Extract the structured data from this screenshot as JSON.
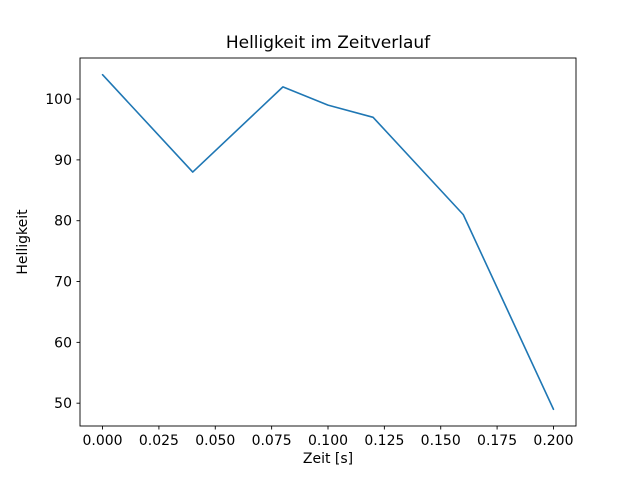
{
  "chart_data": {
    "type": "line",
    "title": "Helligkeit im Zeitverlauf",
    "xlabel": "Zeit [s]",
    "ylabel": "Helligkeit",
    "x": [
      0.0,
      0.04,
      0.08,
      0.1,
      0.12,
      0.16,
      0.2
    ],
    "y": [
      104,
      88,
      102,
      99,
      97,
      81,
      49
    ],
    "xlim": [
      -0.01,
      0.21
    ],
    "ylim": [
      46.25,
      106.75
    ],
    "xticks": [
      0.0,
      0.025,
      0.05,
      0.075,
      0.1,
      0.125,
      0.15,
      0.175,
      0.2
    ],
    "xtick_labels": [
      "0.000",
      "0.025",
      "0.050",
      "0.075",
      "0.100",
      "0.125",
      "0.150",
      "0.175",
      "0.200"
    ],
    "yticks": [
      50,
      60,
      70,
      80,
      90,
      100
    ],
    "ytick_labels": [
      "50",
      "60",
      "70",
      "80",
      "90",
      "100"
    ],
    "line_color": "#1f77b4",
    "spine_color": "#000000",
    "grid": false,
    "legend": null
  }
}
